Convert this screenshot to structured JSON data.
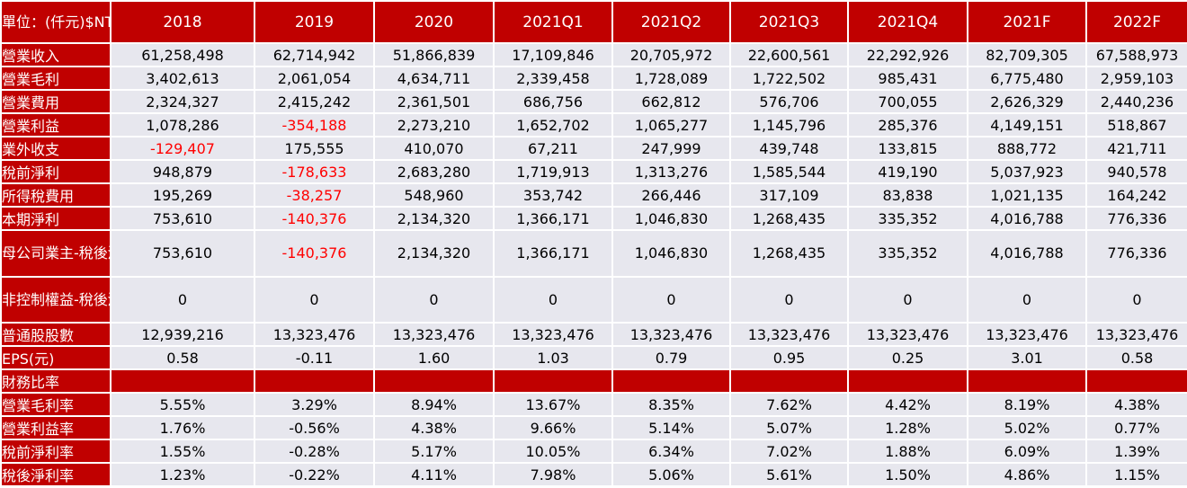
{
  "table": {
    "corner": "單位：(仟元)$NT",
    "columns": [
      "2018",
      "2019",
      "2020",
      "2021Q1",
      "2021Q2",
      "2021Q3",
      "2021Q4",
      "2021F",
      "2022F"
    ],
    "rows": [
      {
        "label": "營業收入",
        "values": [
          "61,258,498",
          "62,714,942",
          "51,866,839",
          "17,109,846",
          "20,705,972",
          "22,600,561",
          "22,292,926",
          "82,709,305",
          "67,588,973"
        ]
      },
      {
        "label": "營業毛利",
        "values": [
          "3,402,613",
          "2,061,054",
          "4,634,711",
          "2,339,458",
          "1,728,089",
          "1,722,502",
          "985,431",
          "6,775,480",
          "2,959,103"
        ]
      },
      {
        "label": "營業費用",
        "values": [
          "2,324,327",
          "2,415,242",
          "2,361,501",
          "686,756",
          "662,812",
          "576,706",
          "700,055",
          "2,626,329",
          "2,440,236"
        ]
      },
      {
        "label": "營業利益",
        "values": [
          "1,078,286",
          "-354,188",
          "2,273,210",
          "1,652,702",
          "1,065,277",
          "1,145,796",
          "285,376",
          "4,149,151",
          "518,867"
        ]
      },
      {
        "label": "業外收支",
        "values": [
          "-129,407",
          "175,555",
          "410,070",
          "67,211",
          "247,999",
          "439,748",
          "133,815",
          "888,772",
          "421,711"
        ]
      },
      {
        "label": "稅前淨利",
        "values": [
          "948,879",
          "-178,633",
          "2,683,280",
          "1,719,913",
          "1,313,276",
          "1,585,544",
          "419,190",
          "5,037,923",
          "940,578"
        ]
      },
      {
        "label": "所得稅費用",
        "values": [
          "195,269",
          "-38,257",
          "548,960",
          "353,742",
          "266,446",
          "317,109",
          "83,838",
          "1,021,135",
          "164,242"
        ]
      },
      {
        "label": "本期淨利",
        "values": [
          "753,610",
          "-140,376",
          "2,134,320",
          "1,366,171",
          "1,046,830",
          "1,268,435",
          "335,352",
          "4,016,788",
          "776,336"
        ]
      },
      {
        "label": "母公司業主-稅後淨利",
        "values": [
          "753,610",
          "-140,376",
          "2,134,320",
          "1,366,171",
          "1,046,830",
          "1,268,435",
          "335,352",
          "4,016,788",
          "776,336"
        ],
        "tall": true
      },
      {
        "label": "非控制權益-稅後淨利",
        "values": [
          "0",
          "0",
          "0",
          "0",
          "0",
          "0",
          "0",
          "0",
          "0"
        ],
        "tall": true
      },
      {
        "label": "普通股股數",
        "values": [
          "12,939,216",
          "13,323,476",
          "13,323,476",
          "13,323,476",
          "13,323,476",
          "13,323,476",
          "13,323,476",
          "13,323,476",
          "13,323,476"
        ]
      },
      {
        "label": "EPS(元)",
        "values": [
          "0.58",
          "-0.11",
          "1.60",
          "1.03",
          "0.79",
          "0.95",
          "0.25",
          "3.01",
          "0.58"
        ]
      }
    ],
    "ratio_header": "財務比率",
    "ratio_rows": [
      {
        "label": "營業毛利率",
        "values": [
          "5.55%",
          "3.29%",
          "8.94%",
          "13.67%",
          "8.35%",
          "7.62%",
          "4.42%",
          "8.19%",
          "4.38%"
        ]
      },
      {
        "label": "營業利益率",
        "values": [
          "1.76%",
          "-0.56%",
          "4.38%",
          "9.66%",
          "5.14%",
          "5.07%",
          "1.28%",
          "5.02%",
          "0.77%"
        ]
      },
      {
        "label": "稅前淨利率",
        "values": [
          "1.55%",
          "-0.28%",
          "5.17%",
          "10.05%",
          "6.34%",
          "7.02%",
          "1.88%",
          "6.09%",
          "1.39%"
        ]
      },
      {
        "label": "稅後淨利率",
        "values": [
          "1.23%",
          "-0.22%",
          "4.11%",
          "7.98%",
          "5.06%",
          "5.61%",
          "1.50%",
          "4.86%",
          "1.15%"
        ]
      }
    ],
    "negative_cells": [
      {
        "row": 3,
        "col": 1
      },
      {
        "row": 4,
        "col": 0
      },
      {
        "row": 5,
        "col": 1
      },
      {
        "row": 6,
        "col": 1
      },
      {
        "row": 7,
        "col": 1
      },
      {
        "row": 8,
        "col": 1
      }
    ],
    "colors": {
      "header_bg": "#c00000",
      "cell_bg": "#e7e7ee",
      "negative": "#ff0000"
    }
  }
}
